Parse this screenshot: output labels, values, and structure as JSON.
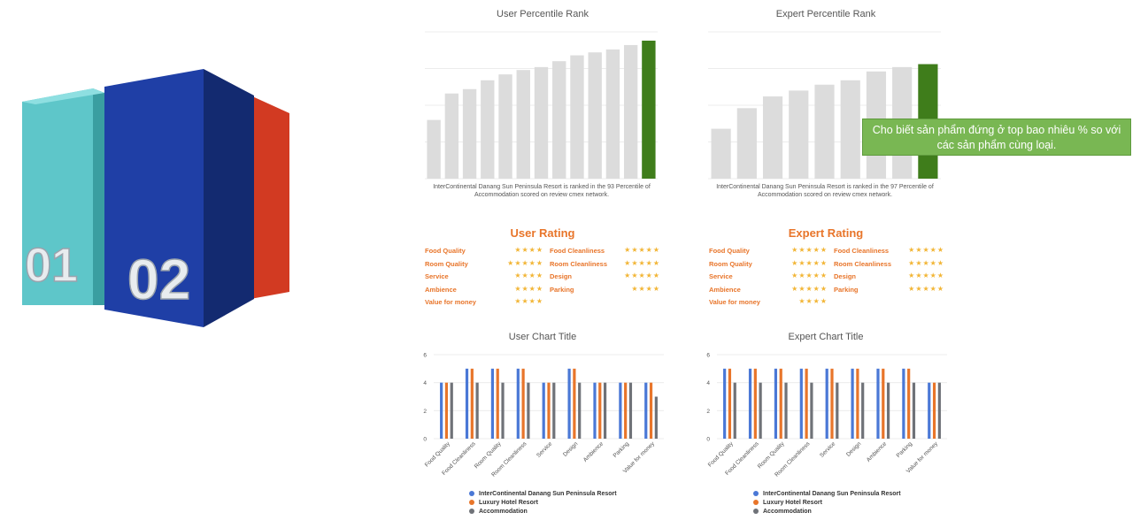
{
  "colors": {
    "bar_grey": "#dcdcdc",
    "bar_highlight": "#3f7d1b",
    "hotel": "#4a78d6",
    "luxury": "#e8752a",
    "accommodation": "#6f7278",
    "rating_orange": "#e8752a",
    "star": "#f2b535",
    "callout_bg": "#79b753"
  },
  "graphic": {
    "block1_label": "01",
    "block2_label": "02"
  },
  "callout": {
    "text": "Cho biết sản phẩm đứng ở top bao nhiêu % so với các sản phẩm cùng loại."
  },
  "legend": {
    "hotel": "InterContinental Danang Sun Peninsula Resort",
    "luxury": "Luxury Hotel Resort",
    "accommodation": "Accommodation"
  },
  "user_rating": {
    "title": "User Rating",
    "left": [
      {
        "label": "Food Quality",
        "stars": "★★★★"
      },
      {
        "label": "Room Quality",
        "stars": "★★★★★"
      },
      {
        "label": "Service",
        "stars": "★★★★"
      },
      {
        "label": "Ambience",
        "stars": "★★★★"
      },
      {
        "label": "Value for money",
        "stars": "★★★★"
      }
    ],
    "right": [
      {
        "label": "Food Cleanliness",
        "stars": "★★★★★"
      },
      {
        "label": "Room Cleanliness",
        "stars": "★★★★★"
      },
      {
        "label": "Design",
        "stars": "★★★★★"
      },
      {
        "label": "Parking",
        "stars": "★★★★"
      }
    ]
  },
  "expert_rating": {
    "title": "Expert Rating",
    "left": [
      {
        "label": "Food Quality",
        "stars": "★★★★★"
      },
      {
        "label": "Room Quality",
        "stars": "★★★★★"
      },
      {
        "label": "Service",
        "stars": "★★★★★"
      },
      {
        "label": "Ambience",
        "stars": "★★★★★"
      },
      {
        "label": "Value for money",
        "stars": "★★★★"
      }
    ],
    "right": [
      {
        "label": "Food Cleanliness",
        "stars": "★★★★★"
      },
      {
        "label": "Room Cleanliness",
        "stars": "★★★★★"
      },
      {
        "label": "Design",
        "stars": "★★★★★"
      },
      {
        "label": "Parking",
        "stars": "★★★★★"
      }
    ]
  },
  "chart_data": [
    {
      "type": "bar",
      "title": "User Percentile Rank",
      "caption": "InterContinental Danang Sun Peninsula Resort is ranked in the 93 Percentile of Accommodation scored on review cmex network.",
      "values": [
        40,
        58,
        61,
        67,
        71,
        74,
        76,
        80,
        84,
        86,
        88,
        91,
        94
      ],
      "highlight_index": 12,
      "ylim": [
        0,
        100
      ],
      "grid": true
    },
    {
      "type": "bar",
      "title": "Expert Percentile Rank",
      "caption": "InterContinental Danang Sun Peninsula Resort is ranked in the 97 Percentile of Accommodation scored on review cmex network.",
      "values": [
        34,
        48,
        56,
        60,
        64,
        67,
        73,
        76,
        78
      ],
      "highlight_index": 8,
      "ylim": [
        0,
        100
      ],
      "grid": true
    },
    {
      "type": "bar",
      "title": "User Chart Title",
      "categories": [
        "Food Quality",
        "Food Cleanliness",
        "Room Quality",
        "Room Cleanliness",
        "Service",
        "Design",
        "Ambience",
        "Parking",
        "Value for money"
      ],
      "series": [
        {
          "name": "InterContinental Danang Sun Peninsula Resort",
          "values": [
            4,
            5,
            5,
            5,
            4,
            5,
            4,
            4,
            4
          ]
        },
        {
          "name": "Luxury Hotel Resort",
          "values": [
            4,
            5,
            5,
            5,
            4,
            5,
            4,
            4,
            4
          ]
        },
        {
          "name": "Accommodation",
          "values": [
            4,
            4,
            4,
            4,
            4,
            4,
            4,
            4,
            3
          ]
        }
      ],
      "yticks": [
        0,
        2,
        4,
        6
      ],
      "ylim": [
        0,
        6
      ],
      "legend_position": "bottom"
    },
    {
      "type": "bar",
      "title": "Expert Chart Title",
      "categories": [
        "Food Quality",
        "Food Cleanliness",
        "Room Quality",
        "Room Cleanliness",
        "Service",
        "Design",
        "Ambience",
        "Parking",
        "Value for money"
      ],
      "series": [
        {
          "name": "InterContinental Danang Sun Peninsula Resort",
          "values": [
            5,
            5,
            5,
            5,
            5,
            5,
            5,
            5,
            4
          ]
        },
        {
          "name": "Luxury Hotel Resort",
          "values": [
            5,
            5,
            5,
            5,
            5,
            5,
            5,
            5,
            4
          ]
        },
        {
          "name": "Accommodation",
          "values": [
            4,
            4,
            4,
            4,
            4,
            4,
            4,
            4,
            4
          ]
        }
      ],
      "yticks": [
        0,
        2,
        4,
        6
      ],
      "ylim": [
        0,
        6
      ],
      "legend_position": "bottom"
    }
  ]
}
